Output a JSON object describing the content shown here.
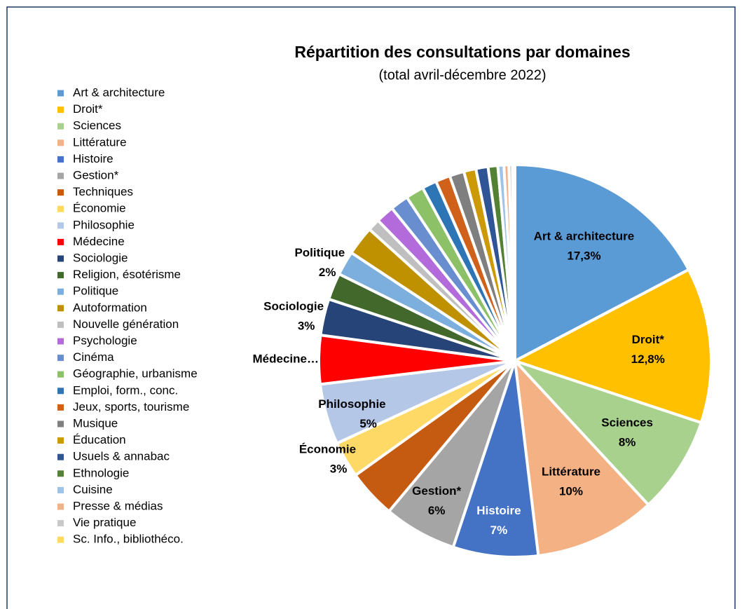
{
  "chart_data": {
    "type": "pie",
    "title": "Répartition des consultations par domaines",
    "subtitle": "(total avril-décembre 2022)",
    "categories": [
      "Art & architecture",
      "Droit*",
      "Sciences",
      "Littérature",
      "Histoire",
      "Gestion*",
      "Techniques",
      "Économie",
      "Philosophie",
      "Médecine",
      "Sociologie",
      "Religion, ésotérisme",
      "Politique",
      "Autoformation",
      "Nouvelle génération",
      "Psychologie",
      "Cinéma",
      "Géographie, urbanisme",
      "Emploi, form., conc.",
      "Jeux, sports, tourisme",
      "Musique",
      "Éducation",
      "Usuels & annabac",
      "Ethnologie",
      "Cuisine",
      "Presse & médias",
      "Vie pratique",
      "Sc. Info., bibliothéco."
    ],
    "values": [
      17.3,
      12.8,
      8,
      10,
      7,
      6,
      4,
      3,
      5,
      4,
      3,
      2.2,
      2,
      2.4,
      1.0,
      1.5,
      1.5,
      1.5,
      1.2,
      1.2,
      1.2,
      1.0,
      1.0,
      0.8,
      0.5,
      0.4,
      0.3,
      0.2
    ],
    "value_labels": [
      "17,3%",
      "12,8%",
      "8%",
      "10%",
      "7%",
      "6%",
      null,
      "3%",
      "5%",
      null,
      "3%",
      null,
      "2%",
      null,
      null,
      null,
      null,
      null,
      null,
      null,
      null,
      null,
      null,
      null,
      null,
      null,
      null,
      null
    ],
    "slice_labels": [
      "Art & architecture",
      "Droit*",
      "Sciences",
      "Littérature",
      "Histoire",
      "Gestion*",
      null,
      "Économie",
      "Philosophie",
      "Médecine…",
      "Sociologie",
      null,
      "Politique",
      null,
      null,
      null,
      null,
      null,
      null,
      null,
      null,
      null,
      null,
      null,
      null,
      null,
      null,
      null
    ],
    "colors": [
      "#5B9BD5",
      "#FFC000",
      "#A9D18E",
      "#F4B183",
      "#4472C4",
      "#A5A5A5",
      "#C55A11",
      "#FFD966",
      "#B4C7E7",
      "#FF0000",
      "#264478",
      "#43682B",
      "#7CAFDD",
      "#BF9000",
      "#BFBFBF",
      "#B36BDB",
      "#698ED0",
      "#8CC168",
      "#2E75B6",
      "#D0611A",
      "#7F7F7F",
      "#CC9A06",
      "#2F5597",
      "#548235",
      "#9DC3E6",
      "#F4B183",
      "#C9C9C9",
      "#FFD966"
    ],
    "legend": "left"
  }
}
